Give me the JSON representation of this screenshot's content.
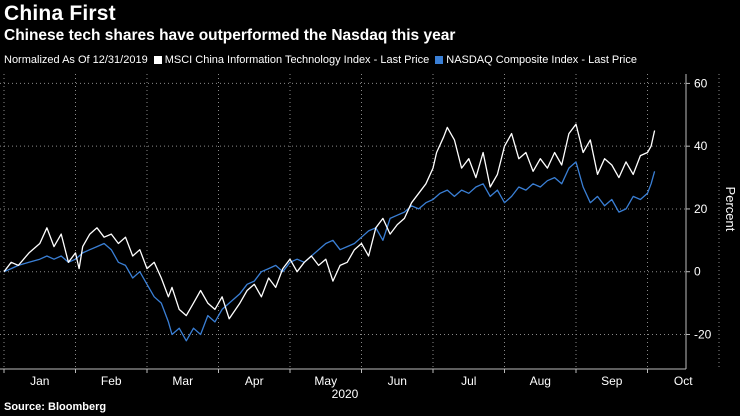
{
  "header": {
    "title": "China First",
    "subtitle": "Chinese tech shares have outperformed the Nasdaq this year"
  },
  "legend": {
    "note": "Normalized As Of 12/31/2019",
    "items": [
      {
        "label": "MSCI China Information Technology Index - Last Price",
        "color": "#ffffff"
      },
      {
        "label": "NASDAQ Composite Index - Last Price",
        "color": "#3a7fd5"
      }
    ]
  },
  "source": "Source: Bloomberg",
  "chart_data": {
    "type": "line",
    "title": "China First",
    "subtitle": "Chinese tech shares have outperformed the Nasdaq this year",
    "xlabel": "2020",
    "ylabel": "Percent",
    "ylim": [
      -31,
      63
    ],
    "y_ticks": [
      60,
      40,
      20,
      0,
      -20
    ],
    "x_ticks": [
      "Jan",
      "Feb",
      "Mar",
      "Apr",
      "May",
      "Jun",
      "Jul",
      "Aug",
      "Sep",
      "Oct"
    ],
    "grid": true,
    "legend_position": "top-left",
    "x_unit": "months since 2019-12-31",
    "series": [
      {
        "name": "MSCI China Information Technology Index - Last Price",
        "color": "#ffffff",
        "x": [
          0,
          0.1,
          0.2,
          0.35,
          0.5,
          0.6,
          0.7,
          0.8,
          0.9,
          1.0,
          1.05,
          1.1,
          1.2,
          1.3,
          1.4,
          1.5,
          1.6,
          1.7,
          1.8,
          1.9,
          2.0,
          2.1,
          2.2,
          2.3,
          2.35,
          2.45,
          2.55,
          2.65,
          2.75,
          2.85,
          2.95,
          3.05,
          3.15,
          3.3,
          3.4,
          3.5,
          3.6,
          3.7,
          3.8,
          3.9,
          4.0,
          4.1,
          4.2,
          4.3,
          4.4,
          4.5,
          4.6,
          4.7,
          4.8,
          4.9,
          5.0,
          5.1,
          5.2,
          5.3,
          5.4,
          5.5,
          5.6,
          5.7,
          5.8,
          5.9,
          6.0,
          6.05,
          6.15,
          6.2,
          6.3,
          6.4,
          6.5,
          6.6,
          6.7,
          6.8,
          6.9,
          7.0,
          7.1,
          7.2,
          7.3,
          7.4,
          7.5,
          7.6,
          7.7,
          7.8,
          7.9,
          8.0,
          8.1,
          8.2,
          8.3,
          8.4,
          8.5,
          8.6,
          8.7,
          8.8,
          8.9,
          9.0,
          9.05,
          9.1
        ],
        "values": [
          0,
          3,
          2,
          6,
          9,
          14,
          8,
          12,
          3,
          6,
          1,
          8,
          12,
          14,
          11,
          12,
          9,
          11,
          5,
          7,
          1,
          3,
          -2,
          -8,
          -5,
          -12,
          -14,
          -10,
          -6,
          -10,
          -12,
          -8,
          -15,
          -10,
          -6,
          -4,
          -8,
          -2,
          -5,
          1,
          4,
          0,
          3,
          5,
          2,
          4,
          -3,
          2,
          3,
          7,
          9,
          5,
          14,
          17,
          12,
          15,
          17,
          22,
          25,
          28,
          33,
          38,
          43,
          46,
          42,
          33,
          36,
          30,
          38,
          27,
          31,
          40,
          44,
          36,
          38,
          32,
          36,
          33,
          38,
          34,
          44,
          47,
          38,
          42,
          31,
          36,
          34,
          30,
          35,
          31,
          37,
          38,
          40,
          45
        ]
      },
      {
        "name": "NASDAQ Composite Index - Last Price",
        "color": "#3a7fd5",
        "x": [
          0,
          0.1,
          0.2,
          0.35,
          0.5,
          0.6,
          0.7,
          0.8,
          0.9,
          1.0,
          1.1,
          1.2,
          1.3,
          1.4,
          1.5,
          1.6,
          1.7,
          1.8,
          1.9,
          2.0,
          2.1,
          2.2,
          2.3,
          2.35,
          2.45,
          2.55,
          2.65,
          2.75,
          2.85,
          2.95,
          3.05,
          3.15,
          3.3,
          3.4,
          3.5,
          3.6,
          3.7,
          3.8,
          3.9,
          4.0,
          4.1,
          4.2,
          4.3,
          4.4,
          4.5,
          4.6,
          4.7,
          4.8,
          4.9,
          5.0,
          5.1,
          5.2,
          5.3,
          5.4,
          5.5,
          5.6,
          5.7,
          5.8,
          5.9,
          6.0,
          6.1,
          6.2,
          6.3,
          6.4,
          6.5,
          6.6,
          6.7,
          6.8,
          6.9,
          7.0,
          7.1,
          7.2,
          7.3,
          7.4,
          7.5,
          7.6,
          7.7,
          7.8,
          7.9,
          8.0,
          8.1,
          8.2,
          8.3,
          8.4,
          8.5,
          8.6,
          8.7,
          8.8,
          8.9,
          9.0,
          9.05,
          9.1
        ],
        "values": [
          0,
          1,
          2,
          3,
          4,
          5,
          4,
          5,
          3,
          4,
          6,
          7,
          8,
          9,
          7,
          3,
          2,
          -2,
          0,
          -4,
          -8,
          -10,
          -16,
          -20,
          -18,
          -22,
          -18,
          -20,
          -14,
          -16,
          -12,
          -10,
          -7,
          -4,
          -3,
          0,
          1,
          2,
          0,
          3,
          4,
          3,
          5,
          7,
          9,
          10,
          7,
          8,
          9,
          11,
          13,
          14,
          10,
          17,
          18,
          19,
          21,
          20,
          22,
          23,
          25,
          26,
          24,
          26,
          25,
          27,
          28,
          24,
          26,
          22,
          24,
          27,
          26,
          28,
          27,
          29,
          30,
          28,
          33,
          35,
          27,
          22,
          24,
          21,
          23,
          19,
          20,
          24,
          23,
          25,
          28,
          32
        ]
      }
    ]
  }
}
